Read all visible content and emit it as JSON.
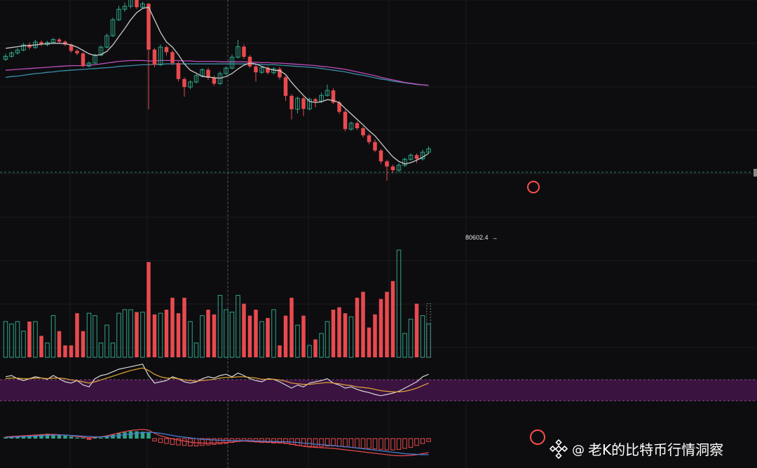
{
  "watermark": {
    "at": "@",
    "author": "老K的比特币行情洞察",
    "logo_icon": "binance-logo-icon"
  },
  "colors": {
    "up": "#2fa58a",
    "down": "#e84a4f",
    "ma_short": "#c9c9c9",
    "ma_mid": "#c04dbf",
    "ma_long": "#3a8fa8",
    "rsi_band": "#3a1340",
    "rsi_line1": "#d8d8d8",
    "rsi_line2": "#e3a53a",
    "macd_dif": "#e84a4f",
    "macd_dea": "#4a7fd8",
    "highlight_circle": "#ff4d4d",
    "grid": "#1c1c1f",
    "crosshair": "#555555"
  },
  "chart_data": {
    "type": "candlestick",
    "low_label": "80602.4",
    "low_label_arrow": "→",
    "candles": [
      {
        "o": 85.9,
        "c": 86.6,
        "h": 87.2,
        "l": 85.5
      },
      {
        "o": 86.6,
        "c": 87.4,
        "h": 87.8,
        "l": 86.3
      },
      {
        "o": 87.4,
        "c": 88.1,
        "h": 88.6,
        "l": 87.0
      },
      {
        "o": 88.1,
        "c": 89.3,
        "h": 89.8,
        "l": 87.8
      },
      {
        "o": 89.3,
        "c": 88.7,
        "h": 89.9,
        "l": 88.2
      },
      {
        "o": 88.7,
        "c": 90.0,
        "h": 90.5,
        "l": 88.4
      },
      {
        "o": 90.0,
        "c": 89.4,
        "h": 90.4,
        "l": 89.0
      },
      {
        "o": 89.4,
        "c": 89.9,
        "h": 90.3,
        "l": 89.0
      },
      {
        "o": 89.9,
        "c": 90.6,
        "h": 91.0,
        "l": 89.6
      },
      {
        "o": 90.6,
        "c": 90.1,
        "h": 91.0,
        "l": 89.7
      },
      {
        "o": 90.1,
        "c": 89.4,
        "h": 90.4,
        "l": 89.0
      },
      {
        "o": 89.4,
        "c": 87.9,
        "h": 89.6,
        "l": 87.5
      },
      {
        "o": 87.9,
        "c": 87.3,
        "h": 88.3,
        "l": 86.9
      },
      {
        "o": 87.3,
        "c": 84.3,
        "h": 87.6,
        "l": 84.0
      },
      {
        "o": 84.3,
        "c": 85.0,
        "h": 85.4,
        "l": 84.0
      },
      {
        "o": 85.0,
        "c": 86.9,
        "h": 87.2,
        "l": 84.8
      },
      {
        "o": 86.9,
        "c": 88.8,
        "h": 89.2,
        "l": 86.6
      },
      {
        "o": 88.8,
        "c": 91.5,
        "h": 92.0,
        "l": 88.5
      },
      {
        "o": 91.5,
        "c": 95.3,
        "h": 95.8,
        "l": 91.2
      },
      {
        "o": 95.3,
        "c": 97.8,
        "h": 98.6,
        "l": 95.0
      },
      {
        "o": 97.8,
        "c": 98.5,
        "h": 99.4,
        "l": 97.2
      },
      {
        "o": 98.5,
        "c": 100.2,
        "h": 101.0,
        "l": 98.0
      },
      {
        "o": 100.2,
        "c": 98.3,
        "h": 100.8,
        "l": 97.9
      },
      {
        "o": 98.3,
        "c": 99.1,
        "h": 99.6,
        "l": 97.9
      },
      {
        "o": 99.1,
        "c": 88.2,
        "h": 99.3,
        "l": 74.0
      },
      {
        "o": 88.2,
        "c": 84.6,
        "h": 88.6,
        "l": 84.0
      },
      {
        "o": 84.6,
        "c": 88.8,
        "h": 89.4,
        "l": 84.3
      },
      {
        "o": 88.8,
        "c": 87.6,
        "h": 89.2,
        "l": 86.8
      },
      {
        "o": 87.6,
        "c": 85.0,
        "h": 88.0,
        "l": 84.5
      },
      {
        "o": 85.0,
        "c": 81.2,
        "h": 85.4,
        "l": 80.6
      },
      {
        "o": 81.2,
        "c": 79.3,
        "h": 81.6,
        "l": 77.0
      },
      {
        "o": 79.3,
        "c": 80.5,
        "h": 80.9,
        "l": 78.8
      },
      {
        "o": 80.5,
        "c": 82.0,
        "h": 82.4,
        "l": 80.1
      },
      {
        "o": 82.0,
        "c": 83.4,
        "h": 83.8,
        "l": 81.7
      },
      {
        "o": 83.4,
        "c": 81.5,
        "h": 83.9,
        "l": 81.0
      },
      {
        "o": 81.5,
        "c": 80.1,
        "h": 82.0,
        "l": 79.6
      },
      {
        "o": 80.1,
        "c": 82.5,
        "h": 83.0,
        "l": 79.8
      },
      {
        "o": 82.5,
        "c": 83.8,
        "h": 84.2,
        "l": 82.2
      },
      {
        "o": 83.8,
        "c": 86.4,
        "h": 87.0,
        "l": 83.5
      },
      {
        "o": 86.4,
        "c": 88.9,
        "h": 90.5,
        "l": 86.1
      },
      {
        "o": 88.9,
        "c": 86.5,
        "h": 89.4,
        "l": 86.0
      },
      {
        "o": 86.5,
        "c": 84.2,
        "h": 86.9,
        "l": 83.8
      },
      {
        "o": 84.2,
        "c": 82.8,
        "h": 84.6,
        "l": 80.6
      },
      {
        "o": 82.8,
        "c": 83.9,
        "h": 84.3,
        "l": 82.4
      },
      {
        "o": 83.9,
        "c": 82.7,
        "h": 84.3,
        "l": 82.3
      },
      {
        "o": 82.7,
        "c": 83.6,
        "h": 84.0,
        "l": 82.3
      },
      {
        "o": 83.6,
        "c": 81.6,
        "h": 84.1,
        "l": 81.1
      },
      {
        "o": 81.6,
        "c": 77.2,
        "h": 82.0,
        "l": 76.0
      },
      {
        "o": 77.2,
        "c": 74.0,
        "h": 77.6,
        "l": 71.6
      },
      {
        "o": 74.0,
        "c": 76.6,
        "h": 77.0,
        "l": 73.0
      },
      {
        "o": 76.6,
        "c": 74.1,
        "h": 77.0,
        "l": 72.4
      },
      {
        "o": 74.1,
        "c": 76.4,
        "h": 76.8,
        "l": 73.8
      },
      {
        "o": 76.4,
        "c": 75.9,
        "h": 76.8,
        "l": 74.5
      },
      {
        "o": 75.9,
        "c": 77.3,
        "h": 78.0,
        "l": 75.5
      },
      {
        "o": 77.3,
        "c": 78.5,
        "h": 79.9,
        "l": 77.0
      },
      {
        "o": 78.5,
        "c": 75.6,
        "h": 79.0,
        "l": 75.2
      },
      {
        "o": 75.6,
        "c": 73.4,
        "h": 76.0,
        "l": 72.9
      },
      {
        "o": 73.4,
        "c": 69.3,
        "h": 73.9,
        "l": 68.8
      },
      {
        "o": 69.3,
        "c": 70.7,
        "h": 71.1,
        "l": 68.9
      },
      {
        "o": 70.7,
        "c": 69.5,
        "h": 71.1,
        "l": 69.1
      },
      {
        "o": 69.5,
        "c": 67.8,
        "h": 69.9,
        "l": 67.3
      },
      {
        "o": 67.8,
        "c": 66.2,
        "h": 68.2,
        "l": 65.7
      },
      {
        "o": 66.2,
        "c": 64.2,
        "h": 66.8,
        "l": 63.8
      },
      {
        "o": 64.2,
        "c": 61.6,
        "h": 64.6,
        "l": 61.0
      },
      {
        "o": 61.6,
        "c": 60.4,
        "h": 62.0,
        "l": 57.0
      },
      {
        "o": 60.4,
        "c": 59.5,
        "h": 60.8,
        "l": 58.8
      },
      {
        "o": 59.5,
        "c": 60.7,
        "h": 61.2,
        "l": 59.0
      },
      {
        "o": 60.7,
        "c": 62.1,
        "h": 62.5,
        "l": 60.3
      },
      {
        "o": 62.1,
        "c": 63.1,
        "h": 63.5,
        "l": 61.7
      },
      {
        "o": 63.1,
        "c": 62.2,
        "h": 63.5,
        "l": 61.2
      },
      {
        "o": 62.2,
        "c": 63.8,
        "h": 64.4,
        "l": 61.8
      },
      {
        "o": 63.8,
        "c": 64.6,
        "h": 65.2,
        "l": 63.5
      }
    ],
    "ma_short": [
      88.5,
      88.7,
      88.9,
      89.1,
      89.2,
      89.3,
      89.5,
      89.6,
      89.7,
      89.7,
      89.6,
      89.3,
      88.8,
      88.0,
      87.2,
      86.8,
      87.0,
      87.8,
      89.3,
      91.3,
      93.2,
      95.3,
      97.0,
      98.0,
      98.3,
      95.3,
      92.3,
      90.0,
      88.8,
      87.0,
      84.8,
      83.3,
      82.6,
      81.8,
      81.7,
      81.5,
      81.4,
      81.8,
      82.5,
      83.6,
      84.5,
      85.0,
      84.8,
      84.2,
      83.7,
      83.3,
      83.2,
      82.3,
      80.4,
      78.8,
      77.3,
      75.9,
      75.6,
      75.8,
      76.3,
      76.1,
      75.6,
      74.2,
      72.9,
      71.6,
      70.3,
      68.9,
      67.7,
      66.0,
      64.3,
      62.7,
      61.6,
      61.0,
      61.3,
      61.9,
      62.6,
      63.5
    ],
    "ma_mid": [
      83.3,
      83.4,
      83.5,
      83.6,
      83.7,
      83.8,
      83.9,
      84.0,
      84.1,
      84.2,
      84.3,
      84.4,
      84.4,
      84.4,
      84.5,
      84.6,
      84.8,
      85.0,
      85.2,
      85.4,
      85.5,
      85.6,
      85.6,
      85.6,
      85.5,
      85.5,
      85.6,
      85.6,
      85.6,
      85.6,
      85.5,
      85.5,
      85.4,
      85.4,
      85.4,
      85.4,
      85.3,
      85.3,
      85.3,
      85.3,
      85.3,
      85.2,
      85.2,
      85.1,
      85.1,
      85.0,
      85.0,
      84.9,
      84.8,
      84.7,
      84.6,
      84.5,
      84.4,
      84.2,
      84.1,
      83.9,
      83.7,
      83.5,
      83.2,
      82.9,
      82.6,
      82.3,
      82.0,
      81.6,
      81.3,
      81.0,
      80.7,
      80.4,
      80.2,
      80.0,
      79.8,
      79.7
    ],
    "ma_long": [
      81.6,
      81.8,
      81.9,
      82.1,
      82.3,
      82.5,
      82.6,
      82.8,
      82.9,
      83.1,
      83.2,
      83.3,
      83.4,
      83.5,
      83.6,
      83.7,
      83.8,
      83.9,
      84.0,
      84.2,
      84.3,
      84.4,
      84.5,
      84.6,
      84.6,
      84.7,
      84.7,
      84.8,
      84.8,
      84.8,
      84.8,
      84.8,
      84.8,
      84.8,
      84.8,
      84.8,
      84.8,
      84.8,
      84.8,
      84.8,
      84.8,
      84.8,
      84.7,
      84.7,
      84.6,
      84.6,
      84.5,
      84.4,
      84.3,
      84.2,
      84.1,
      84.0,
      83.9,
      83.7,
      83.5,
      83.3,
      83.1,
      82.9,
      82.6,
      82.3,
      82.1,
      81.8,
      81.5,
      81.2,
      81.0,
      80.7,
      80.5,
      80.3,
      80.1,
      79.9,
      79.8,
      79.7
    ],
    "volume": [
      0.3,
      0.28,
      0.3,
      0.22,
      0.3,
      0.3,
      0.18,
      0.12,
      0.35,
      0.22,
      0.1,
      0.1,
      0.37,
      0.22,
      0.37,
      0.35,
      0.12,
      0.27,
      0.12,
      0.37,
      0.4,
      0.4,
      0.38,
      0.38,
      0.8,
      0.36,
      0.37,
      0.4,
      0.5,
      0.37,
      0.5,
      0.3,
      0.12,
      0.35,
      0.4,
      0.36,
      0.52,
      0.4,
      0.38,
      0.52,
      0.45,
      0.35,
      0.4,
      0.3,
      0.33,
      0.4,
      0.1,
      0.35,
      0.5,
      0.27,
      0.35,
      0.1,
      0.15,
      0.2,
      0.3,
      0.4,
      0.42,
      0.37,
      0.34,
      0.5,
      0.55,
      0.25,
      0.36,
      0.49,
      0.55,
      0.64,
      0.9,
      0.2,
      0.32,
      0.45,
      0.35,
      0.28
    ],
    "volume_last_ghost": 0.45,
    "rsi1": [
      58,
      60,
      55,
      52,
      55,
      58,
      56,
      54,
      60,
      55,
      50,
      48,
      52,
      45,
      42,
      55,
      60,
      62,
      66,
      70,
      72,
      74,
      76,
      78,
      60,
      48,
      50,
      52,
      58,
      55,
      50,
      48,
      50,
      55,
      58,
      56,
      60,
      62,
      58,
      64,
      60,
      55,
      52,
      50,
      55,
      54,
      50,
      45,
      40,
      45,
      42,
      48,
      50,
      52,
      55,
      48,
      45,
      40,
      42,
      38,
      35,
      33,
      30,
      28,
      30,
      32,
      35,
      40,
      45,
      50,
      58,
      62
    ],
    "rsi2": [
      55,
      56,
      56,
      55,
      55,
      56,
      56,
      55,
      56,
      56,
      55,
      53,
      52,
      50,
      48,
      50,
      53,
      56,
      59,
      62,
      65,
      68,
      70,
      72,
      68,
      62,
      58,
      56,
      56,
      55,
      53,
      52,
      51,
      52,
      53,
      54,
      56,
      57,
      57,
      58,
      58,
      57,
      56,
      54,
      54,
      54,
      53,
      51,
      48,
      47,
      46,
      46,
      47,
      48,
      49,
      48,
      47,
      45,
      44,
      42,
      41,
      40,
      38,
      36,
      35,
      34,
      34,
      35,
      37,
      40,
      44,
      48
    ],
    "macd_hist": [
      0.3,
      0.4,
      0.5,
      0.6,
      0.7,
      0.8,
      0.9,
      1.0,
      0.9,
      0.8,
      0.6,
      0.4,
      0.2,
      0.0,
      -0.2,
      0.0,
      0.2,
      0.5,
      0.8,
      1.1,
      1.3,
      1.5,
      1.5,
      1.4,
      1.2,
      -0.5,
      -0.8,
      -1.0,
      -1.2,
      -1.3,
      -1.4,
      -1.5,
      -1.5,
      -1.4,
      -1.3,
      -1.2,
      -1.1,
      -1.0,
      -0.8,
      -0.6,
      -0.5,
      -0.6,
      -0.7,
      -0.8,
      -0.8,
      -0.9,
      -0.9,
      -1.0,
      -1.2,
      -1.4,
      -1.5,
      -1.6,
      -1.6,
      -1.6,
      -1.5,
      -1.5,
      -1.6,
      -1.7,
      -1.8,
      -1.9,
      -2.0,
      -2.0,
      -2.1,
      -2.2,
      -2.3,
      -2.3,
      -2.2,
      -2.0,
      -1.8,
      -1.4,
      -1.0,
      -0.6
    ],
    "macd_dif": [
      0.5,
      0.6,
      0.7,
      0.8,
      0.9,
      1.0,
      1.1,
      1.2,
      1.2,
      1.1,
      1.0,
      0.8,
      0.6,
      0.4,
      0.2,
      0.3,
      0.5,
      0.8,
      1.2,
      1.6,
      2.0,
      2.3,
      2.5,
      2.6,
      2.4,
      1.5,
      0.8,
      0.3,
      -0.1,
      -0.4,
      -0.7,
      -1.0,
      -1.2,
      -1.3,
      -1.3,
      -1.3,
      -1.2,
      -1.1,
      -1.0,
      -0.8,
      -0.7,
      -0.8,
      -0.9,
      -1.0,
      -1.0,
      -1.1,
      -1.1,
      -1.3,
      -1.6,
      -1.9,
      -2.2,
      -2.4,
      -2.5,
      -2.6,
      -2.7,
      -2.8,
      -3.0,
      -3.2,
      -3.4,
      -3.6,
      -3.8,
      -4.0,
      -4.2,
      -4.4,
      -4.6,
      -4.8,
      -4.9,
      -4.9,
      -4.8,
      -4.6,
      -4.3,
      -4.0
    ],
    "macd_dea": [
      0.3,
      0.4,
      0.5,
      0.6,
      0.6,
      0.7,
      0.8,
      0.9,
      1.0,
      1.0,
      1.0,
      0.9,
      0.8,
      0.7,
      0.6,
      0.5,
      0.5,
      0.6,
      0.7,
      0.9,
      1.1,
      1.3,
      1.5,
      1.7,
      1.8,
      1.7,
      1.5,
      1.2,
      0.9,
      0.6,
      0.4,
      0.2,
      0.0,
      -0.2,
      -0.3,
      -0.4,
      -0.5,
      -0.5,
      -0.6,
      -0.6,
      -0.6,
      -0.6,
      -0.7,
      -0.7,
      -0.8,
      -0.8,
      -0.9,
      -0.9,
      -1.0,
      -1.1,
      -1.3,
      -1.4,
      -1.6,
      -1.7,
      -1.9,
      -2.0,
      -2.2,
      -2.3,
      -2.5,
      -2.7,
      -2.9,
      -3.1,
      -3.3,
      -3.5,
      -3.7,
      -3.9,
      -4.1,
      -4.3,
      -4.4,
      -4.5,
      -4.6,
      -4.6
    ]
  }
}
